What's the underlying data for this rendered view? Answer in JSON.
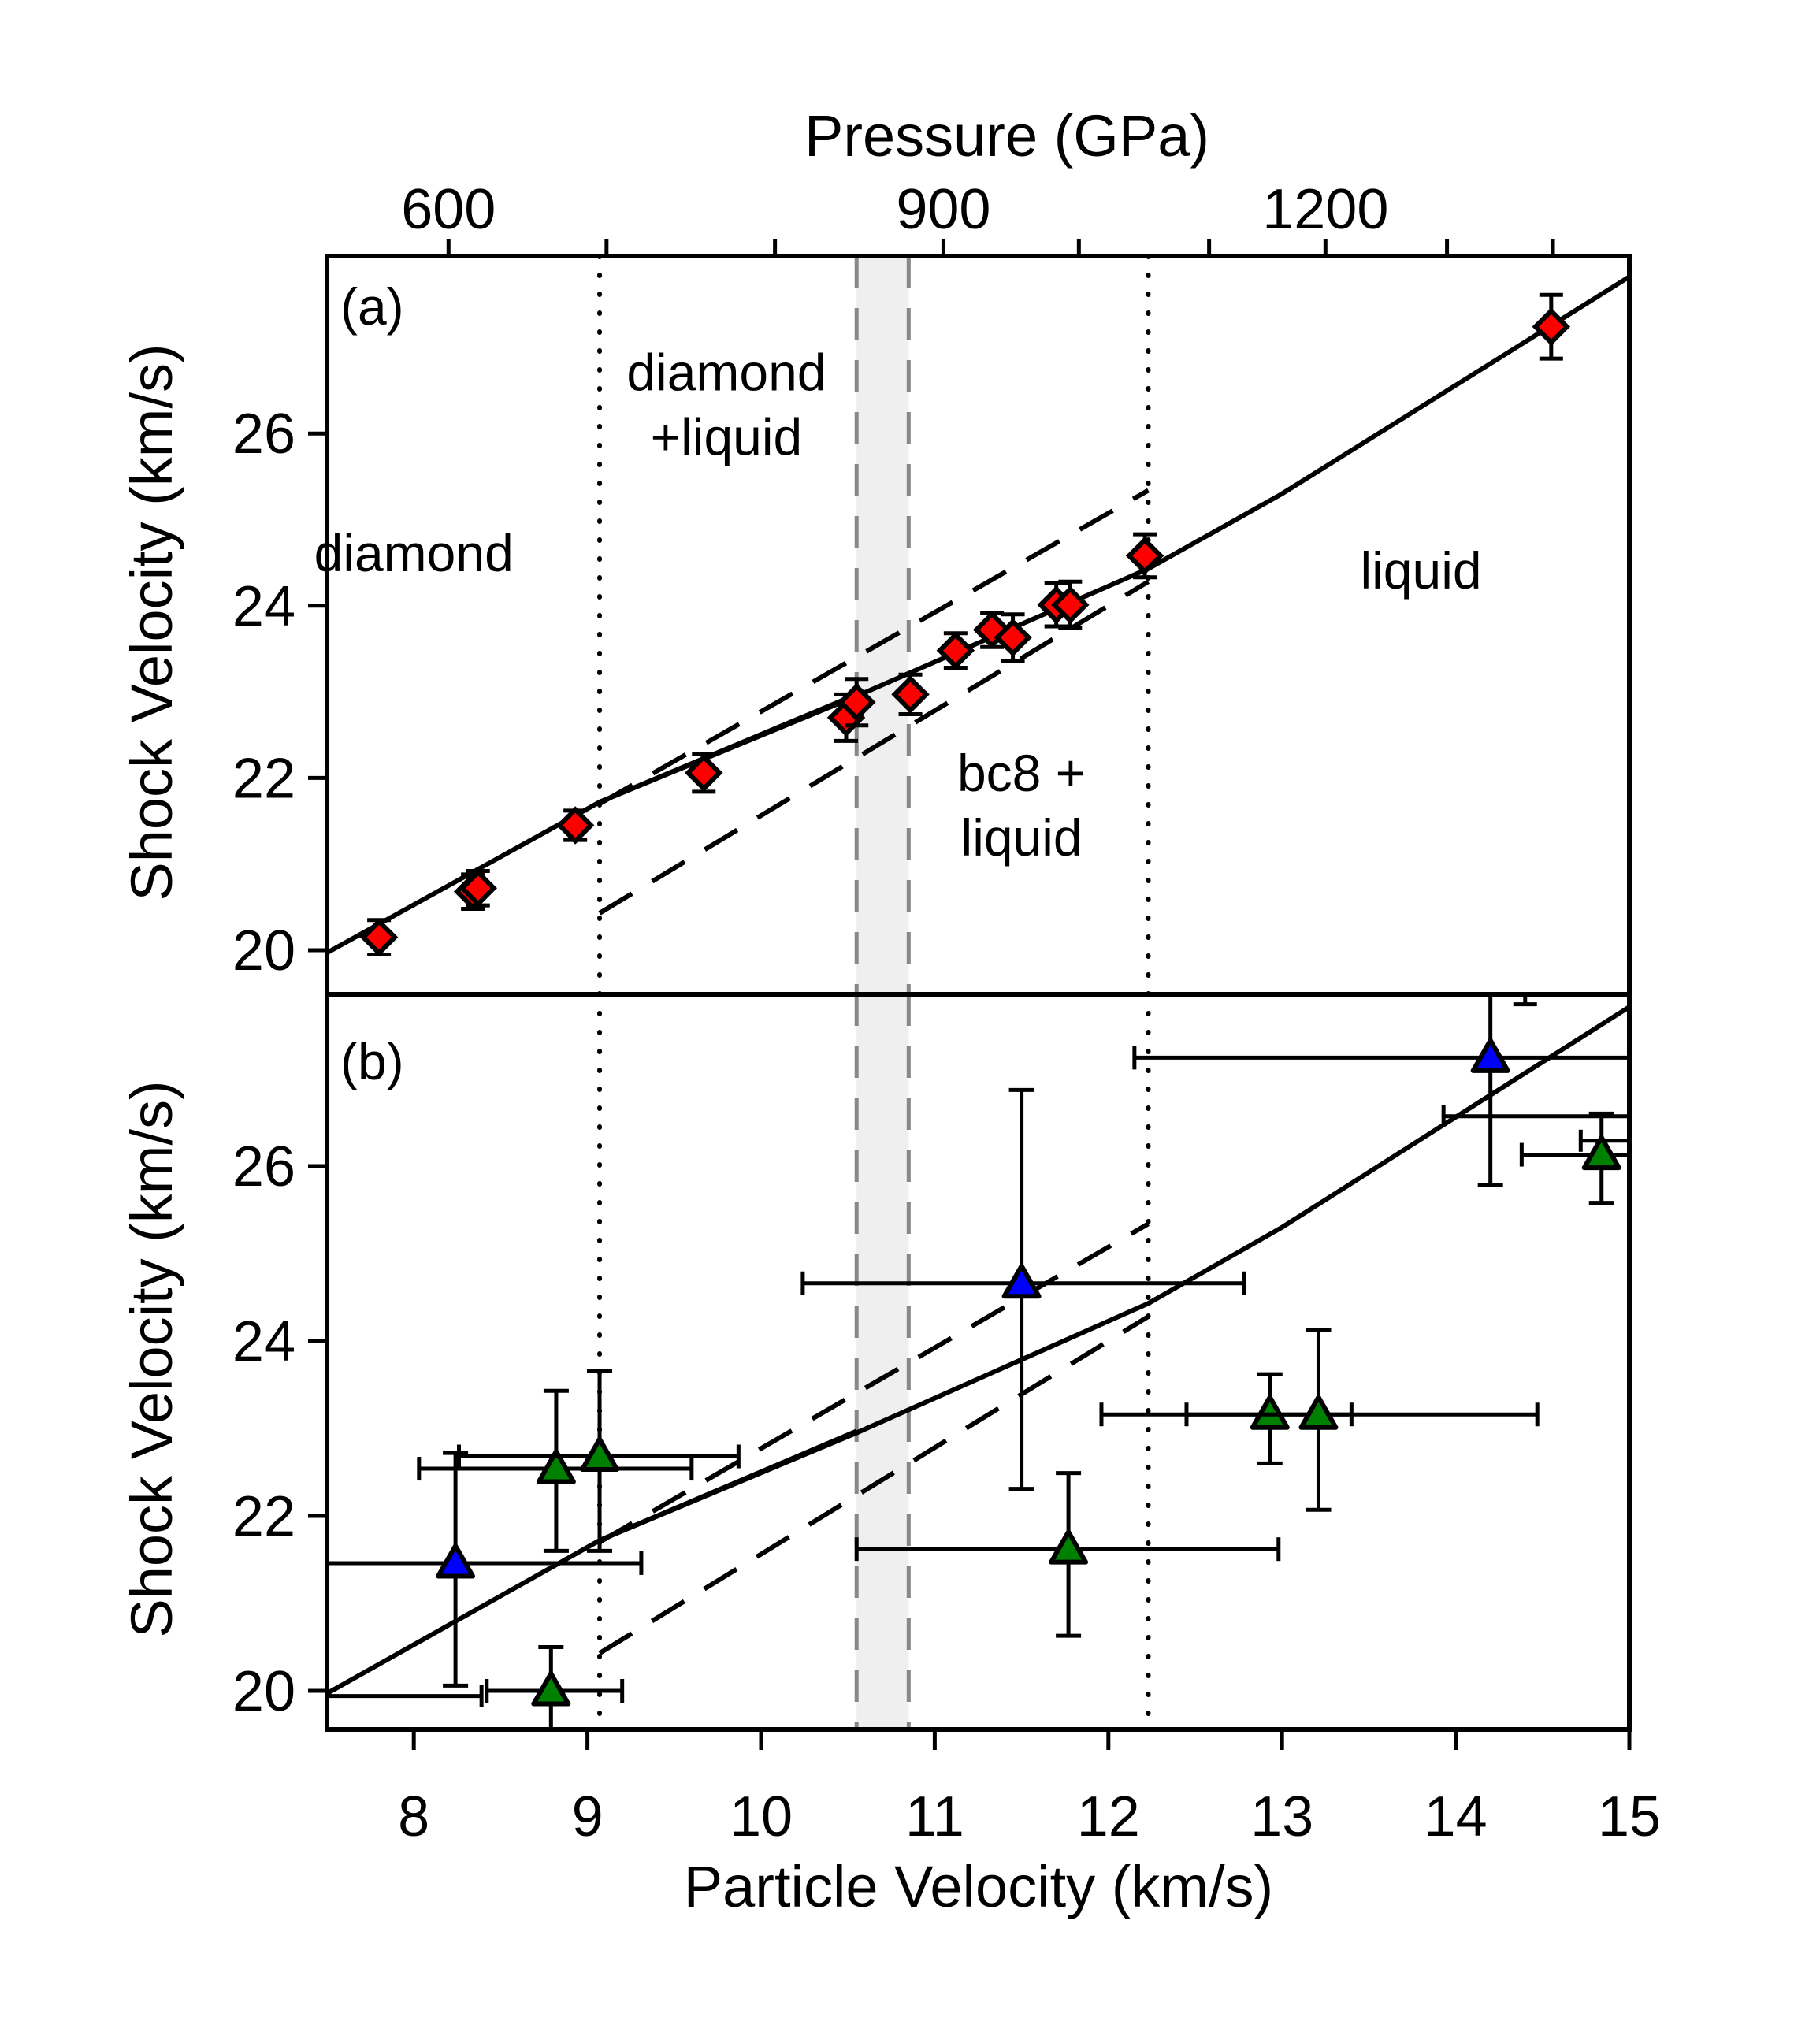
{
  "chart_data": [
    {
      "panel": "a",
      "type": "scatter",
      "panel_label": "(a)",
      "top_axis_title": "Pressure (GPa)",
      "top_ticks": [
        {
          "pressure": 600,
          "up": 8.2,
          "label": "600"
        },
        {
          "pressure": 700,
          "up": 9.11,
          "label": ""
        },
        {
          "pressure": 800,
          "up": 10.08,
          "label": ""
        },
        {
          "pressure": 900,
          "up": 11.05,
          "label": "900"
        },
        {
          "pressure": 1000,
          "up": 11.83,
          "label": ""
        },
        {
          "pressure": 1100,
          "up": 12.58,
          "label": ""
        },
        {
          "pressure": 1200,
          "up": 13.25,
          "label": "1200"
        },
        {
          "pressure": 1300,
          "up": 13.95,
          "label": ""
        },
        {
          "pressure": 1400,
          "up": 14.56,
          "label": ""
        }
      ],
      "ylabel": "Shock Velocity (km/s)",
      "xlim": [
        7.5,
        15
      ],
      "ylim": [
        19.45,
        28.05
      ],
      "yticks": [
        20,
        22,
        24,
        26
      ],
      "ytick_labels": [
        "20",
        "22",
        "24",
        "26"
      ],
      "region_labels": [
        {
          "text": "diamond",
          "x": 8.0,
          "y": 24.4
        },
        {
          "text": "diamond",
          "x": 9.8,
          "y": 26.5
        },
        {
          "text": "+liquid",
          "x": 9.8,
          "y": 25.75
        },
        {
          "text": "bc8 +",
          "x": 11.5,
          "y": 21.85
        },
        {
          "text": "liquid",
          "x": 11.5,
          "y": 21.1
        },
        {
          "text": "liquid",
          "x": 13.8,
          "y": 24.2
        }
      ],
      "series": [
        {
          "name": "data",
          "marker": "diamond",
          "color": "#ff0000",
          "points": [
            {
              "x": 7.8,
              "y": 20.15,
              "yerr": 0.2
            },
            {
              "x": 8.34,
              "y": 20.68,
              "yerr": 0.2
            },
            {
              "x": 8.37,
              "y": 20.72,
              "yerr": 0.2
            },
            {
              "x": 8.93,
              "y": 21.45,
              "yerr": 0.17
            },
            {
              "x": 9.67,
              "y": 22.06,
              "yerr": 0.22
            },
            {
              "x": 10.49,
              "y": 22.7,
              "yerr": 0.27
            },
            {
              "x": 10.55,
              "y": 22.88,
              "yerr": 0.27
            },
            {
              "x": 10.86,
              "y": 22.97,
              "yerr": 0.23
            },
            {
              "x": 11.12,
              "y": 23.48,
              "yerr": 0.2
            },
            {
              "x": 11.33,
              "y": 23.72,
              "yerr": 0.2
            },
            {
              "x": 11.45,
              "y": 23.63,
              "yerr": 0.27
            },
            {
              "x": 11.7,
              "y": 24.01,
              "yerr": 0.25
            },
            {
              "x": 11.78,
              "y": 24.01,
              "yerr": 0.27
            },
            {
              "x": 12.21,
              "y": 24.58,
              "yerr": 0.25
            },
            {
              "x": 14.55,
              "y": 27.24,
              "yerr": 0.37
            }
          ]
        }
      ]
    },
    {
      "panel": "b",
      "type": "scatter",
      "panel_label": "(b)",
      "xlabel": "Particle Velocity (km/s)",
      "ylabel": "Shock Velocity (km/s)",
      "xlim": [
        7.5,
        15
      ],
      "ylim": [
        19.55,
        27.95
      ],
      "xticks": [
        8,
        9,
        10,
        11,
        12,
        13,
        14,
        15
      ],
      "xtick_labels": [
        "8",
        "9",
        "10",
        "11",
        "12",
        "13",
        "14",
        "15"
      ],
      "yticks": [
        20,
        22,
        24,
        26
      ],
      "ytick_labels": [
        "20",
        "22",
        "24",
        "26"
      ],
      "series": [
        {
          "name": "blue",
          "marker": "triangle",
          "color": "#0000ff",
          "points": [
            {
              "x": 8.24,
              "y": 21.46,
              "ylo": 20.06,
              "yhi": 22.72,
              "xlo": 7.3,
              "xhi": 9.31
            },
            {
              "x": 11.5,
              "y": 24.66,
              "ylo": 22.31,
              "yhi": 26.87,
              "xlo": 10.24,
              "xhi": 12.78
            },
            {
              "x": 14.2,
              "y": 27.24,
              "ylo": 25.78,
              "yhi": 28.2,
              "xlo": 12.15,
              "xhi": 15.5
            }
          ]
        },
        {
          "name": "green",
          "marker": "triangle",
          "color": "#008000",
          "points": [
            {
              "x": 8.82,
              "y": 22.54,
              "ylo": 21.6,
              "yhi": 23.43,
              "xlo": 8.03,
              "xhi": 9.6
            },
            {
              "x": 9.07,
              "y": 22.68,
              "ylo": 21.6,
              "yhi": 23.66,
              "xlo": 8.26,
              "xhi": 9.87
            },
            {
              "x": 8.79,
              "y": 20.0,
              "ylo": 19.5,
              "yhi": 20.5,
              "xlo": 8.42,
              "xhi": 9.2
            },
            {
              "x": 11.77,
              "y": 21.62,
              "ylo": 20.63,
              "yhi": 22.49,
              "xlo": 10.55,
              "xhi": 12.98
            },
            {
              "x": 12.93,
              "y": 23.16,
              "ylo": 22.6,
              "yhi": 23.62,
              "xlo": 12.45,
              "xhi": 13.4
            },
            {
              "x": 13.21,
              "y": 23.16,
              "ylo": 22.07,
              "yhi": 24.13,
              "xlo": 11.96,
              "xhi": 14.47
            },
            {
              "x": 14.84,
              "y": 26.13,
              "ylo": 25.58,
              "yhi": 26.6,
              "xlo": 14.38,
              "xhi": 15.5
            }
          ]
        }
      ],
      "extra_xerr": [
        {
          "y": 19.94,
          "xlo": 7.3,
          "xhi": 8.39
        },
        {
          "y": 26.57,
          "xlo": 13.93,
          "xhi": 15.5
        },
        {
          "y": 26.29,
          "xlo": 14.72,
          "xhi": 15.5
        }
      ],
      "offscale_cap": {
        "x": 14.4,
        "y": 27.85
      }
    }
  ],
  "shared": {
    "phase_boundaries_dotted_up": [
      9.07,
      12.23
    ],
    "shaded_band_up": [
      10.55,
      10.85
    ],
    "solid_lines": [
      [
        [
          7.5,
          19.97
        ],
        [
          9.07,
          21.72
        ],
        [
          10.55,
          22.97
        ]
      ],
      [
        [
          9.07,
          21.72
        ],
        [
          10.55,
          22.95
        ],
        [
          12.23,
          24.43
        ],
        [
          13.0,
          25.3
        ],
        [
          15.0,
          27.82
        ]
      ]
    ],
    "dashed_lines": [
      [
        [
          9.07,
          21.7
        ],
        [
          12.23,
          25.34
        ]
      ],
      [
        [
          9.07,
          20.43
        ],
        [
          12.23,
          24.28
        ]
      ]
    ],
    "colors": {
      "axis": "#000000",
      "band_fill": "#efefef",
      "band_edge": "#888888",
      "diamond": "#ff0000",
      "blue": "#0000ff",
      "green": "#008000"
    }
  }
}
